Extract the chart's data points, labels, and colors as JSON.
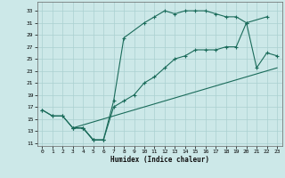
{
  "xlabel": "Humidex (Indice chaleur)",
  "xlim": [
    -0.5,
    23.5
  ],
  "ylim": [
    10.5,
    34.5
  ],
  "xticks": [
    0,
    1,
    2,
    3,
    4,
    5,
    6,
    7,
    8,
    9,
    10,
    11,
    12,
    13,
    14,
    15,
    16,
    17,
    18,
    19,
    20,
    21,
    22,
    23
  ],
  "yticks": [
    11,
    13,
    15,
    17,
    19,
    21,
    23,
    25,
    27,
    29,
    31,
    33
  ],
  "bg_color": "#cce8e8",
  "line_color": "#1a6b5a",
  "grid_color": "#aad0d0",
  "series1_x": [
    0,
    1,
    2,
    3,
    4,
    5,
    6,
    7,
    8,
    9,
    10,
    11,
    12,
    13,
    14,
    15,
    16,
    17,
    18,
    19,
    20,
    21,
    22,
    23
  ],
  "series1_y": [
    16.5,
    15.5,
    15.5,
    13.5,
    13.5,
    11.5,
    11.5,
    null,
    null,
    null,
    null,
    null,
    null,
    null,
    null,
    null,
    null,
    null,
    null,
    null,
    null,
    null,
    null,
    null
  ],
  "series2_x": [
    0,
    1,
    2,
    3,
    4,
    5,
    6,
    7,
    8,
    10,
    11,
    12,
    13,
    14,
    15,
    16,
    17,
    18,
    19,
    20,
    22
  ],
  "series2_y": [
    16.5,
    15.5,
    15.5,
    13.5,
    13.5,
    11.5,
    11.5,
    18,
    28.5,
    31,
    32,
    33,
    32.5,
    33,
    33,
    33,
    32.5,
    32,
    32,
    31,
    32
  ],
  "series3_x": [
    3,
    4,
    5,
    6,
    7,
    8,
    9,
    10,
    11,
    12,
    13,
    14,
    15,
    16,
    17,
    18,
    19,
    20,
    21,
    22,
    23
  ],
  "series3_y": [
    13.5,
    13.5,
    11.5,
    11.5,
    17,
    18,
    19,
    21,
    22,
    23.5,
    25,
    25.5,
    26.5,
    26.5,
    26.5,
    27,
    27,
    31,
    23.5,
    26,
    25.5
  ],
  "series4_x": [
    3,
    23
  ],
  "series4_y": [
    13.5,
    23.5
  ]
}
